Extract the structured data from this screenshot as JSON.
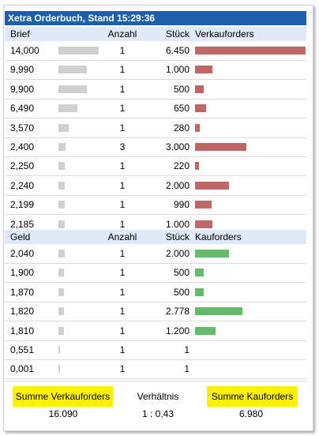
{
  "title": "Xetra Orderbuch, Stand 15:29:36",
  "ask_header": {
    "price": "Brief",
    "count": "Anzahl",
    "qty": "Stück",
    "label": "Verkauforders"
  },
  "asks": [
    {
      "price": "14,000",
      "count": "1",
      "qty": "6.450",
      "bid_share": 0.94,
      "ask_share": 1.0
    },
    {
      "price": "9,990",
      "count": "1",
      "qty": "1.000",
      "bid_share": 0.66,
      "ask_share": 0.155
    },
    {
      "price": "9,900",
      "count": "1",
      "qty": "500",
      "bid_share": 0.66,
      "ask_share": 0.078
    },
    {
      "price": "6,490",
      "count": "1",
      "qty": "650",
      "bid_share": 0.44,
      "ask_share": 0.1
    },
    {
      "price": "3,570",
      "count": "1",
      "qty": "280",
      "bid_share": 0.24,
      "ask_share": 0.043
    },
    {
      "price": "2,400",
      "count": "3",
      "qty": "3.000",
      "bid_share": 0.16,
      "ask_share": 0.465
    },
    {
      "price": "2,250",
      "count": "1",
      "qty": "220",
      "bid_share": 0.15,
      "ask_share": 0.034
    },
    {
      "price": "2,240",
      "count": "1",
      "qty": "2.000",
      "bid_share": 0.15,
      "ask_share": 0.31
    },
    {
      "price": "2,199",
      "count": "1",
      "qty": "990",
      "bid_share": 0.15,
      "ask_share": 0.153
    },
    {
      "price": "2,185",
      "count": "1",
      "qty": "1.000",
      "bid_share": 0.15,
      "ask_share": 0.155
    }
  ],
  "bid_header": {
    "price": "Geld",
    "count": "Anzahl",
    "qty": "Stück",
    "label": "Kauforders"
  },
  "bids": [
    {
      "price": "2,040",
      "count": "1",
      "qty": "2.000",
      "bid_share": 0.14,
      "ask_share": 0.31
    },
    {
      "price": "1,900",
      "count": "1",
      "qty": "500",
      "bid_share": 0.13,
      "ask_share": 0.078
    },
    {
      "price": "1,870",
      "count": "1",
      "qty": "500",
      "bid_share": 0.13,
      "ask_share": 0.078
    },
    {
      "price": "1,820",
      "count": "1",
      "qty": "2.778",
      "bid_share": 0.13,
      "ask_share": 0.43
    },
    {
      "price": "1,810",
      "count": "1",
      "qty": "1.200",
      "bid_share": 0.13,
      "ask_share": 0.186
    },
    {
      "price": "0,551",
      "count": "1",
      "qty": "1",
      "bid_share": 0.04,
      "ask_share": 0
    },
    {
      "price": "0,001",
      "count": "1",
      "qty": "1",
      "bid_share": 0.02,
      "ask_share": 0
    }
  ],
  "footer": {
    "sum_sell_label": "Summe Verkauforders",
    "ratio_label": "Verhältnis",
    "sum_buy_label": "Summe Kauforders",
    "sum_sell_value": "16.090",
    "ratio_value": "1 : 0,43",
    "sum_buy_value": "6.980"
  },
  "colors": {
    "title_bg": "#1f5fa9",
    "header_bg": "#dfe9f7",
    "sell_bar": "#c06666",
    "buy_bar": "#66bb6a",
    "price_bar": "#cfcfcf",
    "highlight": "#fff200"
  }
}
